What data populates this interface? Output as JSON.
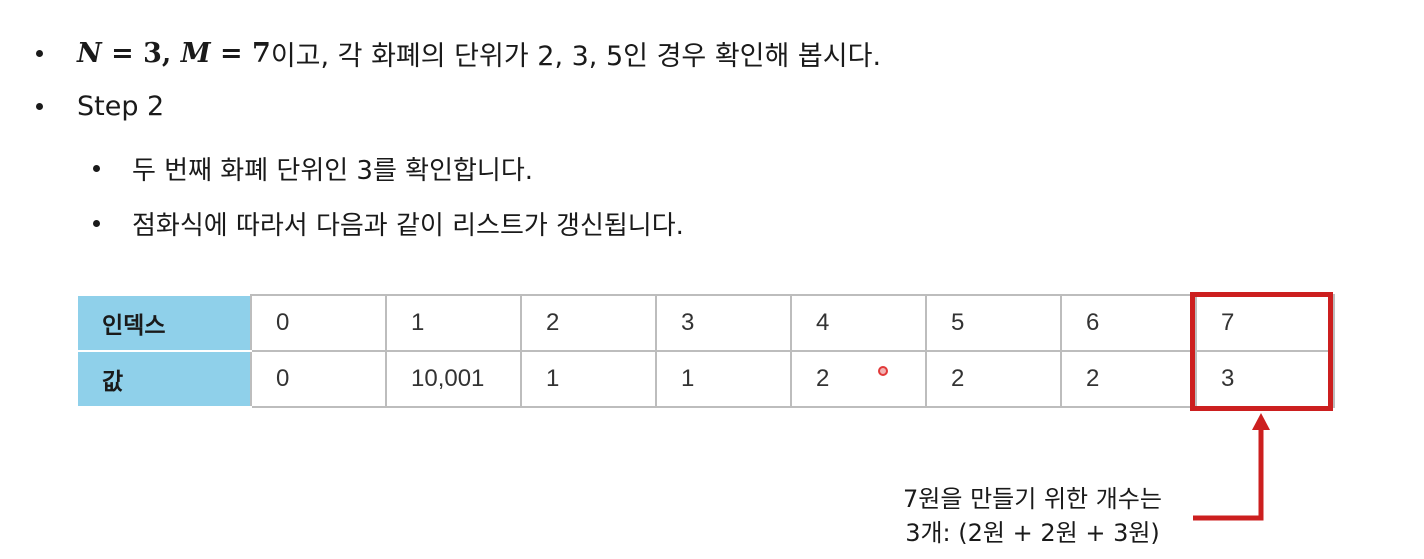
{
  "bullets": {
    "intro": {
      "math_n": "N",
      "math_eq1": " = 3, ",
      "math_m": "M",
      "math_eq2": " = 7",
      "text": "이고, 각 화폐의 단위가 2, 3, 5인 경우 확인해 봅시다."
    },
    "step": "Step 2",
    "sub1": "두 번째 화폐 단위인 3를 확인합니다.",
    "sub2": "점화식에 따라서 다음과 같이 리스트가 갱신됩니다."
  },
  "table": {
    "row_headers": [
      "인덱스",
      "값"
    ],
    "index": [
      "0",
      "1",
      "2",
      "3",
      "4",
      "5",
      "6",
      "7"
    ],
    "values": [
      "0",
      "10,001",
      "1",
      "1",
      "2",
      "2",
      "2",
      "3"
    ]
  },
  "annotation": {
    "line1": "7원을 만들기 위한 개수는",
    "line2": "3개: (2원 + 2원 + 3원)"
  },
  "colors": {
    "header_fill": "#8fd0ea",
    "highlight": "#cc1f1f",
    "grid": "#bdbdbd"
  }
}
